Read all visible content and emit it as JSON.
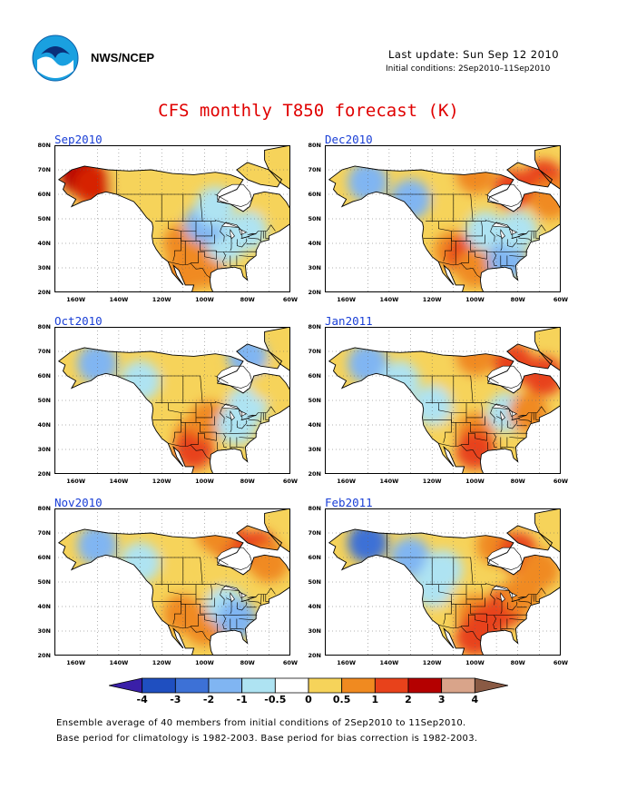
{
  "header": {
    "org": "NWS/NCEP",
    "last_update": "Last update: Sun Sep 12 2010",
    "initial_conditions": "Initial conditions: 2Sep2010–11Sep2010"
  },
  "title": "CFS monthly T850 forecast (K)",
  "panels": [
    {
      "label": "Sep2010",
      "blobs": [
        [
          "#b40000",
          -158,
          68
        ],
        [
          "#d62000",
          -152,
          64
        ],
        [
          "#e8421b",
          -105,
          37
        ],
        [
          "#b40000",
          -105,
          35
        ],
        [
          "#f08a20",
          -110,
          40
        ],
        [
          "#f08a20",
          -100,
          30
        ],
        [
          "#aee3f2",
          -90,
          40
        ],
        [
          "#80b5f2",
          -100,
          48
        ],
        [
          "#aee3f2",
          -80,
          45
        ],
        [
          "#aee3f2",
          -95,
          55
        ],
        [
          "#f6d35a",
          -120,
          63
        ],
        [
          "#f6d35a",
          -135,
          65
        ],
        [
          "#f08a20",
          -110,
          28
        ],
        [
          "#f6d35a",
          -72,
          60
        ]
      ]
    },
    {
      "label": "Oct2010",
      "blobs": [
        [
          "#80b5f2",
          -150,
          65
        ],
        [
          "#aee3f2",
          -130,
          58
        ],
        [
          "#f6d35a",
          -110,
          60
        ],
        [
          "#f6d35a",
          -95,
          48
        ],
        [
          "#f08a20",
          -105,
          35
        ],
        [
          "#e8421b",
          -105,
          30
        ],
        [
          "#f08a20",
          -98,
          42
        ],
        [
          "#aee3f2",
          -85,
          40
        ],
        [
          "#aee3f2",
          -80,
          48
        ],
        [
          "#f6d35a",
          -70,
          58
        ],
        [
          "#80b5f2",
          -80,
          68
        ]
      ]
    },
    {
      "label": "Nov2010",
      "blobs": [
        [
          "#80b5f2",
          -150,
          65
        ],
        [
          "#aee3f2",
          -130,
          58
        ],
        [
          "#f6d35a",
          -110,
          60
        ],
        [
          "#f6d35a",
          -100,
          48
        ],
        [
          "#f08a20",
          -110,
          37
        ],
        [
          "#f08a20",
          -100,
          32
        ],
        [
          "#aee3f2",
          -90,
          40
        ],
        [
          "#80b5f2",
          -85,
          35
        ],
        [
          "#e8421b",
          -90,
          68
        ],
        [
          "#e8421b",
          -75,
          63
        ],
        [
          "#f08a20",
          -70,
          58
        ],
        [
          "#f08a20",
          -95,
          70
        ]
      ]
    },
    {
      "label": "Dec2010",
      "blobs": [
        [
          "#80b5f2",
          -150,
          65
        ],
        [
          "#80b5f2",
          -130,
          58
        ],
        [
          "#f6d35a",
          -110,
          60
        ],
        [
          "#f08a20",
          -100,
          68
        ],
        [
          "#e8421b",
          -82,
          62
        ],
        [
          "#e8421b",
          -68,
          66
        ],
        [
          "#f08a20",
          -110,
          37
        ],
        [
          "#e8421b",
          -104,
          35
        ],
        [
          "#f08a20",
          -100,
          30
        ],
        [
          "#aee3f2",
          -95,
          45
        ],
        [
          "#80b5f2",
          -85,
          33
        ],
        [
          "#aee3f2",
          -80,
          45
        ],
        [
          "#f08a20",
          -65,
          58
        ]
      ]
    },
    {
      "label": "Jan2011",
      "blobs": [
        [
          "#80b5f2",
          -150,
          65
        ],
        [
          "#aee3f2",
          -135,
          58
        ],
        [
          "#f6d35a",
          -110,
          60
        ],
        [
          "#f08a20",
          -100,
          68
        ],
        [
          "#e8421b",
          -82,
          65
        ],
        [
          "#e8421b",
          -68,
          60
        ],
        [
          "#f6d35a",
          -110,
          40
        ],
        [
          "#f08a20",
          -100,
          37
        ],
        [
          "#e8421b",
          -100,
          30
        ],
        [
          "#aee3f2",
          -85,
          45
        ],
        [
          "#f08a20",
          -75,
          45
        ],
        [
          "#aee3f2",
          -120,
          48
        ]
      ]
    },
    {
      "label": "Feb2011",
      "blobs": [
        [
          "#3d71d6",
          -150,
          66
        ],
        [
          "#80b5f2",
          -130,
          60
        ],
        [
          "#aee3f2",
          -115,
          55
        ],
        [
          "#f08a20",
          -90,
          65
        ],
        [
          "#e8421b",
          -80,
          62
        ],
        [
          "#f08a20",
          -70,
          55
        ],
        [
          "#f6d35a",
          -110,
          40
        ],
        [
          "#f08a20",
          -100,
          37
        ],
        [
          "#e8421b",
          -95,
          33
        ],
        [
          "#e8421b",
          -85,
          40
        ],
        [
          "#f08a20",
          -78,
          45
        ],
        [
          "#aee3f2",
          -120,
          48
        ],
        [
          "#e8421b",
          -100,
          28
        ]
      ]
    }
  ],
  "axes": {
    "lat_labels": [
      "80N",
      "70N",
      "60N",
      "50N",
      "40N",
      "30N",
      "20N"
    ],
    "lon_labels": [
      "160W",
      "140W",
      "120W",
      "100W",
      "80W",
      "60W"
    ]
  },
  "colorbar": {
    "colors": [
      "#3a1fa8",
      "#1f4fc0",
      "#3d71d6",
      "#80b5f2",
      "#aee3f2",
      "#ffffff",
      "#f6d35a",
      "#f08a20",
      "#e8421b",
      "#b40000",
      "#d9a48a",
      "#8a5a44"
    ],
    "labels": [
      "-4",
      "-3",
      "-2",
      "-1",
      "-0.5",
      "0",
      "0.5",
      "1",
      "2",
      "3",
      "4"
    ]
  },
  "footer": {
    "line1": "Ensemble average of 40 members from initial conditions of 2Sep2010 to 11Sep2010.",
    "line2": "Base period for climatology is 1982-2003. Base period for bias correction is 1982-2003."
  }
}
